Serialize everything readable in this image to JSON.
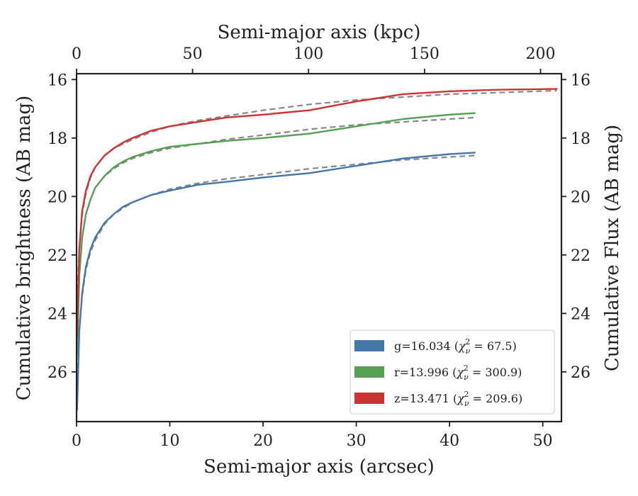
{
  "chart_data": {
    "type": "line",
    "xlabel": "Semi-major axis (arcsec)",
    "x2label": "Semi-major axis (kpc)",
    "ylabel": "Cumulative brightness (AB mag)",
    "y2label": "Cumulative Flux (AB mag)",
    "xlim": [
      0,
      52
    ],
    "x2lim": [
      0,
      209
    ],
    "ylim": [
      27.7,
      15.8
    ],
    "y_inverted": true,
    "xticks": [
      0,
      10,
      20,
      30,
      40,
      50
    ],
    "x2ticks": [
      0,
      50,
      100,
      150,
      200
    ],
    "yticks": [
      16,
      18,
      20,
      22,
      24,
      26
    ],
    "grid": false,
    "legend_position": "lower-right",
    "series": [
      {
        "name": "g=16.034",
        "chi2": "67.5",
        "color": "#4477aa",
        "x": [
          0.05,
          0.3,
          0.6,
          1.0,
          1.5,
          2.0,
          3.0,
          4.0,
          5.0,
          6.0,
          8.0,
          10.0,
          13.0,
          16.0,
          20.0,
          25.0,
          30.0,
          35.0,
          40.0,
          42.7
        ],
        "y": [
          27.3,
          24.6,
          23.3,
          22.4,
          21.8,
          21.4,
          20.9,
          20.6,
          20.35,
          20.2,
          19.95,
          19.8,
          19.6,
          19.5,
          19.35,
          19.2,
          18.95,
          18.7,
          18.55,
          18.5
        ]
      },
      {
        "name": "r=13.996",
        "chi2": "300.9",
        "color": "#55a055",
        "x": [
          0.05,
          0.3,
          0.6,
          1.0,
          1.5,
          2.0,
          3.0,
          4.0,
          5.0,
          6.0,
          8.0,
          10.0,
          13.0,
          16.0,
          20.0,
          25.0,
          30.0,
          35.0,
          40.0,
          42.7
        ],
        "y": [
          25.4,
          22.7,
          21.4,
          20.6,
          20.1,
          19.7,
          19.3,
          19.0,
          18.8,
          18.65,
          18.45,
          18.3,
          18.2,
          18.1,
          18.0,
          17.85,
          17.6,
          17.35,
          17.2,
          17.15
        ]
      },
      {
        "name": "z=13.471",
        "chi2": "209.6",
        "color": "#cc3333",
        "x": [
          0.05,
          0.3,
          0.6,
          1.0,
          1.5,
          2.0,
          3.0,
          4.0,
          5.0,
          6.0,
          8.0,
          10.0,
          13.0,
          16.0,
          20.0,
          25.0,
          30.0,
          35.0,
          40.0,
          45.0,
          51.5
        ],
        "y": [
          24.8,
          21.8,
          20.5,
          19.8,
          19.3,
          19.0,
          18.6,
          18.35,
          18.15,
          18.0,
          17.75,
          17.6,
          17.45,
          17.3,
          17.2,
          17.05,
          16.75,
          16.5,
          16.4,
          16.35,
          16.32
        ]
      }
    ],
    "fits": [
      {
        "of": "g",
        "color": "#888888",
        "x": [
          0.1,
          0.3,
          0.6,
          1.0,
          1.5,
          2.0,
          3.0,
          4.0,
          5.0,
          6.0,
          8.0,
          10.0,
          13.0,
          16.0,
          20.0,
          25.0,
          30.0,
          35.0,
          40.0,
          42.7
        ],
        "y": [
          26.2,
          24.5,
          23.4,
          22.5,
          21.9,
          21.5,
          20.95,
          20.6,
          20.4,
          20.2,
          19.95,
          19.75,
          19.55,
          19.4,
          19.25,
          19.05,
          18.9,
          18.75,
          18.65,
          18.6
        ]
      },
      {
        "of": "r",
        "color": "#888888",
        "x": [
          0.1,
          0.3,
          0.6,
          1.0,
          1.5,
          2.0,
          3.0,
          4.0,
          5.0,
          6.0,
          8.0,
          10.0,
          13.0,
          16.0,
          20.0,
          25.0,
          30.0,
          35.0,
          40.0,
          42.7
        ],
        "y": [
          25.0,
          22.6,
          21.4,
          20.6,
          20.1,
          19.7,
          19.3,
          19.05,
          18.85,
          18.7,
          18.5,
          18.35,
          18.2,
          18.05,
          17.9,
          17.7,
          17.55,
          17.45,
          17.35,
          17.3
        ]
      },
      {
        "of": "z",
        "color": "#888888",
        "x": [
          0.1,
          0.3,
          0.6,
          1.0,
          1.5,
          2.0,
          3.0,
          4.0,
          5.0,
          6.0,
          8.0,
          10.0,
          13.0,
          16.0,
          20.0,
          25.0,
          30.0,
          35.0,
          40.0,
          45.0,
          51.5
        ],
        "y": [
          23.2,
          21.8,
          20.6,
          19.9,
          19.35,
          19.0,
          18.6,
          18.35,
          18.2,
          18.05,
          17.8,
          17.6,
          17.4,
          17.25,
          17.05,
          16.85,
          16.7,
          16.6,
          16.5,
          16.45,
          16.38
        ]
      }
    ]
  }
}
